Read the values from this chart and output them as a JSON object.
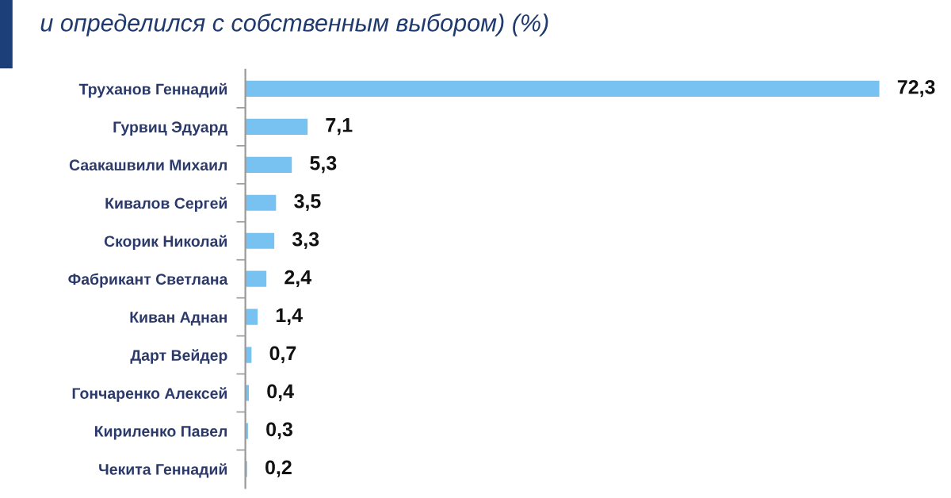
{
  "chart_data": {
    "type": "bar",
    "orientation": "horizontal",
    "title": "и определился с собственным выбором) (%)",
    "categories": [
      "Труханов Геннадий",
      "Гурвиц Эдуард",
      "Саакашвили Михаил",
      "Кивалов Сергей",
      "Скорик Николай",
      "Фабрикант Светлана",
      "Киван Аднан",
      "Дарт Вейдер",
      "Гончаренко Алексей",
      "Кириленко Павел",
      "Чекита Геннадий"
    ],
    "values": [
      72.3,
      7.1,
      5.3,
      3.5,
      3.3,
      2.4,
      1.4,
      0.7,
      0.4,
      0.3,
      0.2
    ],
    "value_labels": [
      "72,3",
      "7,1",
      "5,3",
      "3,5",
      "3,3",
      "2,4",
      "1,4",
      "0,7",
      "0,4",
      "0,3",
      "0,2"
    ],
    "color": "#78c2f2",
    "grid": false,
    "legend": false,
    "tick_labels": "y"
  }
}
